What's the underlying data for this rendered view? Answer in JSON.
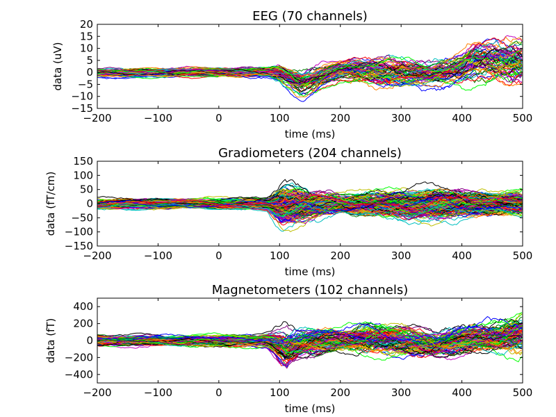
{
  "chart_data": [
    {
      "type": "line",
      "title": "EEG (70 channels)",
      "xlabel": "time (ms)",
      "ylabel": "data (uV)",
      "xlim": [
        -200,
        500
      ],
      "ylim": [
        -15,
        20
      ],
      "xticks": [
        -200,
        -100,
        0,
        100,
        200,
        300,
        400,
        500
      ],
      "yticks": [
        -15,
        -10,
        -5,
        0,
        5,
        10,
        15,
        20
      ],
      "n_channels": 70,
      "grid": false,
      "envelope": [
        {
          "x": -200,
          "min": -3,
          "max": 3
        },
        {
          "x": -100,
          "min": -3,
          "max": 3
        },
        {
          "x": 0,
          "min": -3,
          "max": 3
        },
        {
          "x": 80,
          "min": -3,
          "max": 4
        },
        {
          "x": 100,
          "min": -6,
          "max": 6
        },
        {
          "x": 135,
          "min": -14,
          "max": 5
        },
        {
          "x": 180,
          "min": -8,
          "max": 6
        },
        {
          "x": 200,
          "min": -6,
          "max": 7
        },
        {
          "x": 280,
          "min": -10,
          "max": 11
        },
        {
          "x": 350,
          "min": -8,
          "max": 8
        },
        {
          "x": 400,
          "min": -8,
          "max": 12
        },
        {
          "x": 420,
          "min": -9,
          "max": 18
        },
        {
          "x": 500,
          "min": -10,
          "max": 18
        }
      ]
    },
    {
      "type": "line",
      "title": "Gradiometers (204 channels)",
      "xlabel": "time (ms)",
      "ylabel": "data (fT/cm)",
      "xlim": [
        -200,
        500
      ],
      "ylim": [
        -150,
        150
      ],
      "xticks": [
        -200,
        -100,
        0,
        100,
        200,
        300,
        400,
        500
      ],
      "yticks": [
        -150,
        -100,
        -50,
        0,
        50,
        100,
        150
      ],
      "n_channels": 204,
      "grid": false,
      "envelope": [
        {
          "x": -200,
          "min": -25,
          "max": 25
        },
        {
          "x": -100,
          "min": -25,
          "max": 25
        },
        {
          "x": 0,
          "min": -25,
          "max": 25
        },
        {
          "x": 80,
          "min": -30,
          "max": 30
        },
        {
          "x": 105,
          "min": -110,
          "max": 100
        },
        {
          "x": 150,
          "min": -80,
          "max": 70
        },
        {
          "x": 200,
          "min": -50,
          "max": 50
        },
        {
          "x": 300,
          "min": -70,
          "max": 70
        },
        {
          "x": 360,
          "min": -80,
          "max": 80
        },
        {
          "x": 420,
          "min": -60,
          "max": 60
        },
        {
          "x": 500,
          "min": -60,
          "max": 60
        }
      ]
    },
    {
      "type": "line",
      "title": "Magnetometers (102 channels)",
      "xlabel": "time (ms)",
      "ylabel": "data (fT)",
      "xlim": [
        -200,
        500
      ],
      "ylim": [
        -500,
        500
      ],
      "xticks": [
        -200,
        -100,
        0,
        100,
        200,
        300,
        400,
        500
      ],
      "yticks": [
        -400,
        -200,
        0,
        200,
        400
      ],
      "n_channels": 102,
      "grid": false,
      "envelope": [
        {
          "x": -200,
          "min": -100,
          "max": 100
        },
        {
          "x": -100,
          "min": -100,
          "max": 100
        },
        {
          "x": 0,
          "min": -100,
          "max": 100
        },
        {
          "x": 80,
          "min": -120,
          "max": 120
        },
        {
          "x": 110,
          "min": -460,
          "max": 250
        },
        {
          "x": 140,
          "min": -300,
          "max": 250
        },
        {
          "x": 200,
          "min": -200,
          "max": 200
        },
        {
          "x": 245,
          "min": -250,
          "max": 340
        },
        {
          "x": 300,
          "min": -250,
          "max": 250
        },
        {
          "x": 360,
          "min": -300,
          "max": 200
        },
        {
          "x": 420,
          "min": -250,
          "max": 300
        },
        {
          "x": 500,
          "min": -250,
          "max": 430
        }
      ]
    }
  ],
  "colors": [
    "#0000ff",
    "#008000",
    "#ff0000",
    "#00bfbf",
    "#bf00bf",
    "#bfbf00",
    "#000000",
    "#00ff00",
    "#ff8000",
    "#800080"
  ]
}
